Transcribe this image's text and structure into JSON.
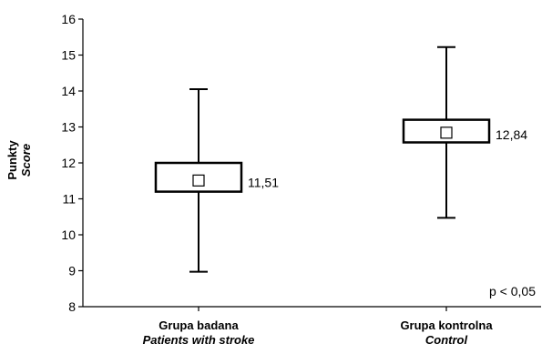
{
  "chart_data": {
    "type": "boxplot",
    "ylabel": "Punkty",
    "ylabel_sub": "Score",
    "ylim": [
      8,
      16
    ],
    "yticks": [
      8,
      9,
      10,
      11,
      12,
      13,
      14,
      15,
      16
    ],
    "ytick_labels": [
      "8",
      "9",
      "10",
      "11",
      "12",
      "13",
      "14",
      "15",
      "16"
    ],
    "categories": [
      {
        "label": "Grupa badana",
        "sublabel": "Patients with stroke",
        "mean": 11.51,
        "mean_label": "11,51",
        "box_low": 11.2,
        "box_high": 12.0,
        "whisker_low": 8.97,
        "whisker_high": 14.05
      },
      {
        "label": "Grupa kontrolna",
        "sublabel": "Control",
        "mean": 12.84,
        "mean_label": "12,84",
        "box_low": 12.57,
        "box_high": 13.2,
        "whisker_low": 10.47,
        "whisker_high": 15.22
      }
    ],
    "annotation": "p < 0,05",
    "grid": false,
    "colors": {
      "stroke": "#000000",
      "background": "#ffffff"
    }
  }
}
